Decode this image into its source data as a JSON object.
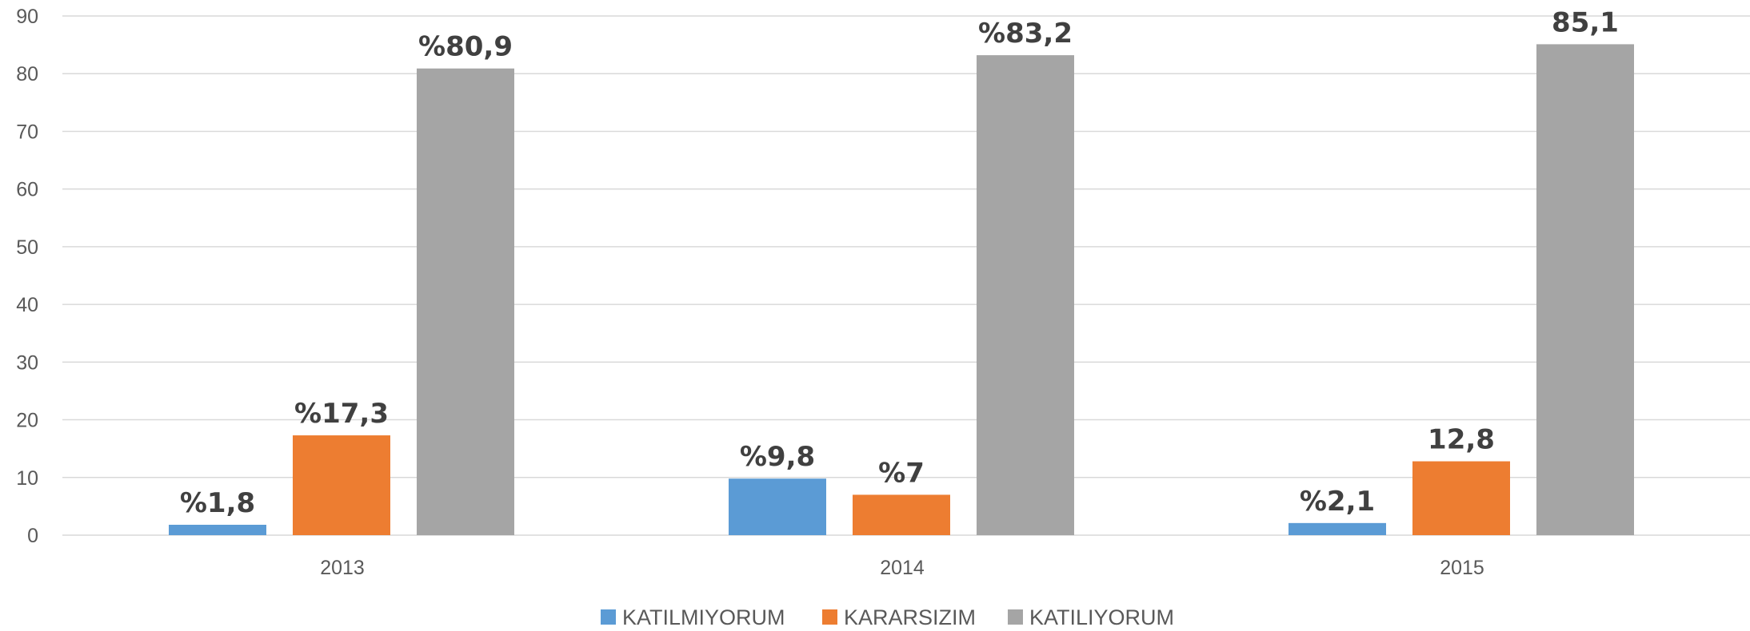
{
  "chart_data": {
    "type": "bar",
    "title": "",
    "xlabel": "",
    "ylabel": "",
    "ylim": [
      0,
      90
    ],
    "yticks": [
      0,
      10,
      20,
      30,
      40,
      50,
      60,
      70,
      80,
      90
    ],
    "grid": true,
    "legend_position": "bottom",
    "categories": [
      "2013",
      "2014",
      "2015"
    ],
    "series": [
      {
        "name": "KATILMIYORUM",
        "color": "#5B9BD5",
        "values": [
          1.8,
          9.8,
          2.1
        ],
        "labels": [
          "%1,8",
          "%9,8",
          "%2,1"
        ]
      },
      {
        "name": "KARARSIZIM",
        "color": "#ED7D31",
        "values": [
          17.3,
          7,
          12.8
        ],
        "labels": [
          "%17,3",
          "%7",
          "12,8"
        ]
      },
      {
        "name": "KATILIYORUM",
        "color": "#A5A5A5",
        "values": [
          80.9,
          83.2,
          85.1
        ],
        "labels": [
          "%80,9",
          "%83,2",
          "85,1"
        ]
      }
    ]
  }
}
